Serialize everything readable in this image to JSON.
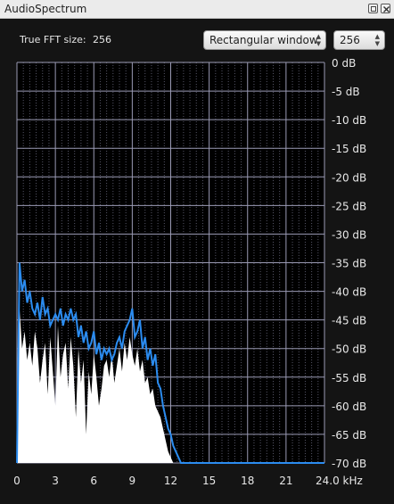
{
  "window": {
    "title": "AudioSpectrum",
    "restore_icon": "restore-icon",
    "close_icon": "close-icon"
  },
  "controls": {
    "fft_label": "True FFT size:",
    "fft_value": "256",
    "window_select": "Rectangular window",
    "size_select": "256"
  },
  "colors": {
    "background": "#141414",
    "grid": "#9a9ab4",
    "line": "#2b8cf0",
    "fill": "#ffffff"
  },
  "chart_data": {
    "type": "area",
    "xlabel": "",
    "ylabel": "",
    "xlim": [
      0,
      24
    ],
    "ylim": [
      -70,
      0
    ],
    "x_ticks": [
      "0",
      "3",
      "6",
      "9",
      "12",
      "15",
      "18",
      "21",
      "24.0 kHz"
    ],
    "y_ticks": [
      "0 dB",
      "-5 dB",
      "-10 dB",
      "-15 dB",
      "-20 dB",
      "-25 dB",
      "-30 dB",
      "-35 dB",
      "-40 dB",
      "-45 dB",
      "-50 dB",
      "-55 dB",
      "-60 dB",
      "-65 dB",
      "-70 dB"
    ],
    "grid": true,
    "series": [
      {
        "x": [
          0,
          0.2,
          0.4,
          0.6,
          0.8,
          1.0,
          1.2,
          1.4,
          1.6,
          1.8,
          2.0,
          2.2,
          2.4,
          2.6,
          2.8,
          3.0,
          3.2,
          3.4,
          3.6,
          3.8,
          4.0,
          4.2,
          4.4,
          4.6,
          4.8,
          5.0,
          5.2,
          5.4,
          5.6,
          5.8,
          6.0,
          6.2,
          6.4,
          6.6,
          6.8,
          7.0,
          7.2,
          7.4,
          7.6,
          7.8,
          8.0,
          8.2,
          8.4,
          8.6,
          8.8,
          9.0,
          9.2,
          9.4,
          9.6,
          9.8,
          10.0,
          10.2,
          10.4,
          10.6,
          10.8,
          11.0,
          11.2,
          11.4,
          11.6,
          11.8,
          12.0,
          12.2,
          12.4,
          12.6,
          12.8,
          13.0,
          24.0
        ],
        "values": [
          -70,
          -35,
          -40,
          -38,
          -42,
          -40,
          -43,
          -44,
          -42,
          -45,
          -41,
          -44,
          -43,
          -46,
          -45,
          -44,
          -45,
          -43,
          -46,
          -44,
          -45,
          -43,
          -45,
          -44,
          -48,
          -46,
          -49,
          -47,
          -50,
          -49,
          -47,
          -51,
          -49,
          -52,
          -50,
          -51,
          -50,
          -52,
          -51,
          -49,
          -48,
          -50,
          -47,
          -46,
          -45,
          -43,
          -48,
          -47,
          -45,
          -50,
          -48,
          -52,
          -50,
          -53,
          -51,
          -56,
          -57,
          -60,
          -62,
          -64,
          -65,
          -67,
          -68,
          -69,
          -70,
          -70,
          -70
        ],
        "area_top": [
          -70,
          -43,
          -50,
          -47,
          -52,
          -49,
          -53,
          -47,
          -50,
          -56,
          -52,
          -49,
          -58,
          -48,
          -54,
          -60,
          -46,
          -55,
          -51,
          -49,
          -57,
          -48,
          -53,
          -62,
          -50,
          -56,
          -52,
          -65,
          -54,
          -58,
          -51,
          -55,
          -60,
          -57,
          -53,
          -52,
          -55,
          -51,
          -56,
          -53,
          -50,
          -54,
          -49,
          -52,
          -48,
          -51,
          -53,
          -50,
          -54,
          -52,
          -56,
          -55,
          -58,
          -57,
          -60,
          -61,
          -62,
          -64,
          -66,
          -68,
          -69,
          -70,
          -70,
          -70,
          -70,
          -70,
          -70
        ]
      }
    ]
  }
}
